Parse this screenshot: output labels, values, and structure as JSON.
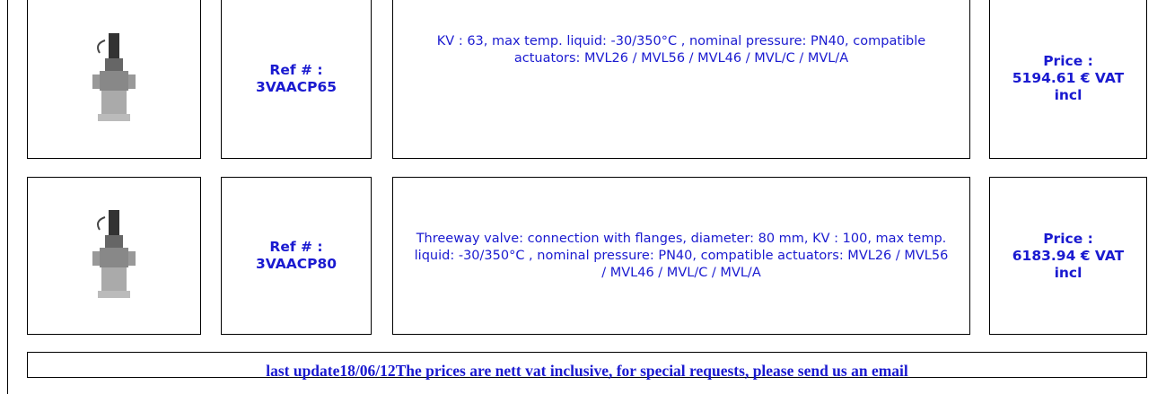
{
  "rows": [
    {
      "ref_label": "Ref # :",
      "ref": "3VAACP65",
      "description": "KV : 63, max temp. liquid: -30/350°C , nominal pressure: PN40, compatible actuators: MVL26 / MVL56 / MVL46 / MVL/C / MVL/A",
      "price_label": "Price :",
      "price": "5194.61 € VAT incl"
    },
    {
      "ref_label": "Ref # :",
      "ref": "3VAACP80",
      "description": "Threeway valve: connection with flanges, diameter: 80 mm, KV : 100, max temp. liquid: -30/350°C , nominal pressure: PN40, compatible actuators: MVL26 / MVL56 / MVL46 / MVL/C / MVL/A",
      "price_label": "Price :",
      "price": "6183.94 € VAT incl"
    }
  ],
  "footer": "last update18/06/12The prices are nett vat inclusive, for special requests, please send us an email"
}
